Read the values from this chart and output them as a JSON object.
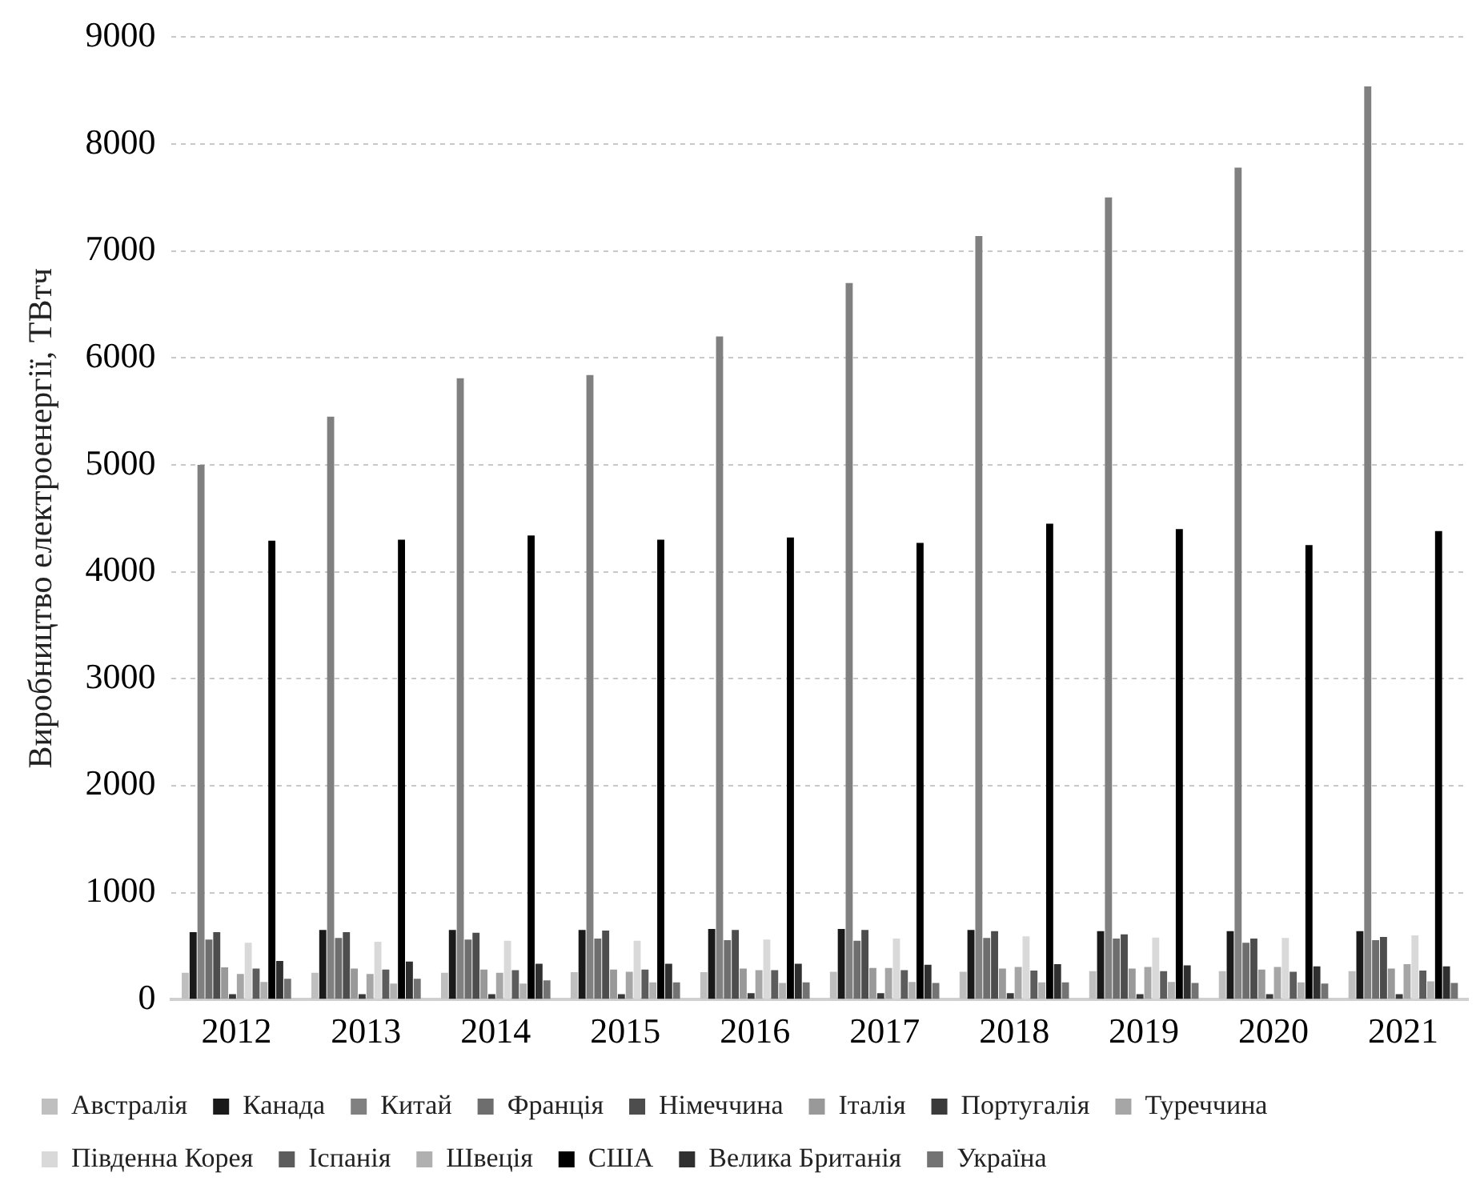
{
  "chart_data": {
    "type": "bar",
    "ylabel": "Виробництво електроенергії, ТВтч",
    "categories": [
      "2012",
      "2013",
      "2014",
      "2015",
      "2016",
      "2017",
      "2018",
      "2019",
      "2020",
      "2021"
    ],
    "series": [
      {
        "name": "Австралія",
        "color": "#bfbfbf",
        "values": [
          250,
          250,
          250,
          255,
          255,
          260,
          260,
          265,
          265,
          265
        ]
      },
      {
        "name": "Канада",
        "color": "#1a1a1a",
        "values": [
          630,
          650,
          650,
          650,
          660,
          660,
          650,
          640,
          640,
          640
        ]
      },
      {
        "name": "Китай",
        "color": "#808080",
        "values": [
          5000,
          5450,
          5810,
          5840,
          6200,
          6700,
          7140,
          7500,
          7780,
          8540
        ]
      },
      {
        "name": "Франція",
        "color": "#6e6e6e",
        "values": [
          560,
          575,
          560,
          570,
          555,
          550,
          575,
          570,
          530,
          555
        ]
      },
      {
        "name": "Німеччина",
        "color": "#4d4d4d",
        "values": [
          630,
          630,
          625,
          645,
          650,
          650,
          640,
          610,
          570,
          585
        ]
      },
      {
        "name": "Італія",
        "color": "#999999",
        "values": [
          300,
          290,
          280,
          280,
          290,
          295,
          290,
          290,
          280,
          290
        ]
      },
      {
        "name": "Португалія",
        "color": "#3a3a3a",
        "values": [
          50,
          50,
          50,
          50,
          60,
          60,
          60,
          50,
          50,
          50
        ]
      },
      {
        "name": "Туреччина",
        "color": "#a6a6a6",
        "values": [
          240,
          240,
          250,
          260,
          275,
          295,
          305,
          305,
          305,
          330
        ]
      },
      {
        "name": "Південна Корея",
        "color": "#d9d9d9",
        "values": [
          530,
          540,
          550,
          550,
          560,
          570,
          590,
          580,
          575,
          600
        ]
      },
      {
        "name": "Іспанія",
        "color": "#5c5c5c",
        "values": [
          290,
          280,
          275,
          280,
          275,
          275,
          270,
          265,
          260,
          270
        ]
      },
      {
        "name": "Швеція",
        "color": "#b0b0b0",
        "values": [
          165,
          150,
          150,
          160,
          155,
          165,
          160,
          165,
          160,
          170
        ]
      },
      {
        "name": "США",
        "color": "#000000",
        "values": [
          4290,
          4300,
          4340,
          4300,
          4320,
          4270,
          4450,
          4400,
          4250,
          4380
        ]
      },
      {
        "name": "Велика Британія",
        "color": "#303030",
        "values": [
          360,
          355,
          335,
          335,
          335,
          325,
          330,
          320,
          310,
          310
        ]
      },
      {
        "name": "Україна",
        "color": "#737373",
        "values": [
          195,
          195,
          180,
          160,
          160,
          155,
          160,
          155,
          150,
          155
        ]
      }
    ],
    "ylim": [
      0,
      9000
    ],
    "yticks": [
      0,
      1000,
      2000,
      3000,
      4000,
      5000,
      6000,
      7000,
      8000,
      9000
    ],
    "grid": "y",
    "legend": "bottom"
  }
}
